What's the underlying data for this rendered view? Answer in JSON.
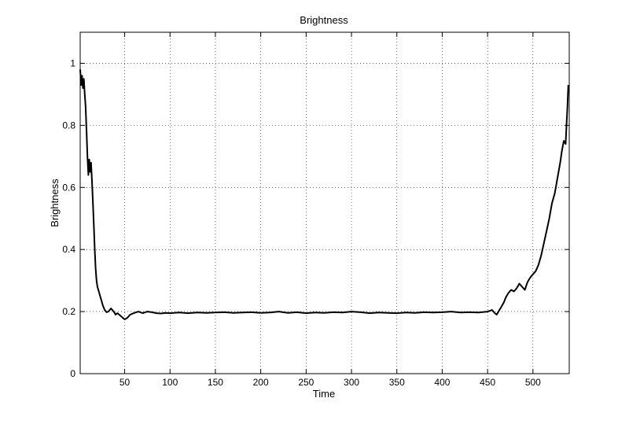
{
  "chart_data": {
    "type": "line",
    "title": "Brightness",
    "xlabel": "Time",
    "ylabel": "Brightness",
    "xlim": [
      1,
      540
    ],
    "ylim": [
      0,
      1.1
    ],
    "xticks": [
      50,
      100,
      150,
      200,
      250,
      300,
      350,
      400,
      450,
      500
    ],
    "yticks": [
      0,
      0.2,
      0.4,
      0.6,
      0.8,
      1
    ],
    "ytick_labels": [
      "0",
      "0.2",
      "0.4",
      "0.6",
      "0.8",
      "1"
    ],
    "grid": true,
    "series": [
      {
        "color": "#000000",
        "x": [
          1,
          2,
          3,
          4,
          5,
          6,
          7,
          8,
          9,
          10,
          11,
          12,
          13,
          14,
          15,
          16,
          17,
          18,
          19,
          20,
          22,
          24,
          26,
          28,
          30,
          32,
          35,
          38,
          40,
          42,
          44,
          46,
          48,
          50,
          53,
          56,
          60,
          65,
          70,
          75,
          80,
          85,
          90,
          95,
          100,
          110,
          120,
          130,
          140,
          150,
          160,
          170,
          180,
          190,
          200,
          210,
          220,
          230,
          240,
          250,
          260,
          270,
          280,
          290,
          300,
          310,
          320,
          330,
          340,
          350,
          360,
          370,
          380,
          390,
          400,
          410,
          420,
          430,
          440,
          450,
          455,
          458,
          460,
          462,
          465,
          468,
          470,
          473,
          476,
          479,
          482,
          485,
          488,
          491,
          494,
          497,
          500,
          503,
          506,
          509,
          512,
          515,
          518,
          521,
          524,
          527,
          530,
          532,
          534,
          536,
          537,
          538,
          539
        ],
        "y": [
          0.98,
          0.93,
          0.96,
          0.92,
          0.95,
          0.9,
          0.86,
          0.78,
          0.7,
          0.64,
          0.69,
          0.65,
          0.68,
          0.62,
          0.55,
          0.48,
          0.4,
          0.34,
          0.3,
          0.28,
          0.26,
          0.24,
          0.22,
          0.205,
          0.198,
          0.2,
          0.21,
          0.2,
          0.19,
          0.195,
          0.19,
          0.185,
          0.18,
          0.175,
          0.18,
          0.19,
          0.195,
          0.2,
          0.195,
          0.2,
          0.198,
          0.195,
          0.194,
          0.196,
          0.195,
          0.197,
          0.195,
          0.197,
          0.196,
          0.197,
          0.198,
          0.196,
          0.197,
          0.198,
          0.196,
          0.197,
          0.2,
          0.196,
          0.198,
          0.195,
          0.197,
          0.196,
          0.198,
          0.197,
          0.2,
          0.198,
          0.195,
          0.197,
          0.196,
          0.195,
          0.197,
          0.196,
          0.198,
          0.197,
          0.198,
          0.2,
          0.197,
          0.198,
          0.197,
          0.2,
          0.205,
          0.195,
          0.19,
          0.2,
          0.215,
          0.23,
          0.245,
          0.26,
          0.27,
          0.265,
          0.275,
          0.29,
          0.28,
          0.27,
          0.295,
          0.31,
          0.32,
          0.33,
          0.35,
          0.38,
          0.42,
          0.46,
          0.5,
          0.55,
          0.58,
          0.63,
          0.68,
          0.72,
          0.75,
          0.74,
          0.8,
          0.86,
          0.93
        ]
      }
    ]
  }
}
